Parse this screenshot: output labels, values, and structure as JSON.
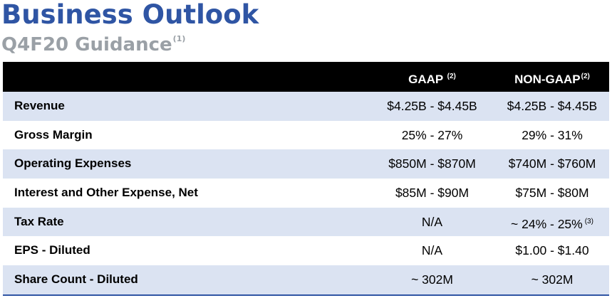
{
  "title": "Business Outlook",
  "subtitle": "Q4F20 Guidance",
  "subtitle_note": "(1)",
  "columns": {
    "gaap": "GAAP",
    "gaap_note": "(2)",
    "nongaap": "NON-GAAP",
    "nongaap_note": "(2)"
  },
  "rows": [
    {
      "label": "Revenue",
      "gaap": "$4.25B - $4.45B",
      "nongaap": "$4.25B - $4.45B"
    },
    {
      "label": "Gross Margin",
      "gaap": "25% - 27%",
      "nongaap": "29% - 31%"
    },
    {
      "label": "Operating Expenses",
      "gaap": "$850M - $870M",
      "nongaap": "$740M - $760M"
    },
    {
      "label": "Interest and Other Expense, Net",
      "gaap": "$85M - $90M",
      "nongaap": "$75M - $80M"
    },
    {
      "label": "Tax Rate",
      "gaap": "N/A",
      "nongaap": "~ 24% - 25%",
      "nongaap_note": "(3)"
    },
    {
      "label": "EPS - Diluted",
      "gaap": "N/A",
      "nongaap": "$1.00 - $1.40"
    },
    {
      "label": "Share Count - Diluted",
      "gaap": "~ 302M",
      "nongaap": "~ 302M"
    }
  ],
  "colors": {
    "title": "#2f55a4",
    "subtitle": "#9aa0a6",
    "header_bg": "#000000",
    "shaded_row": "#dbe3f2",
    "rule": "#2f55a4"
  }
}
